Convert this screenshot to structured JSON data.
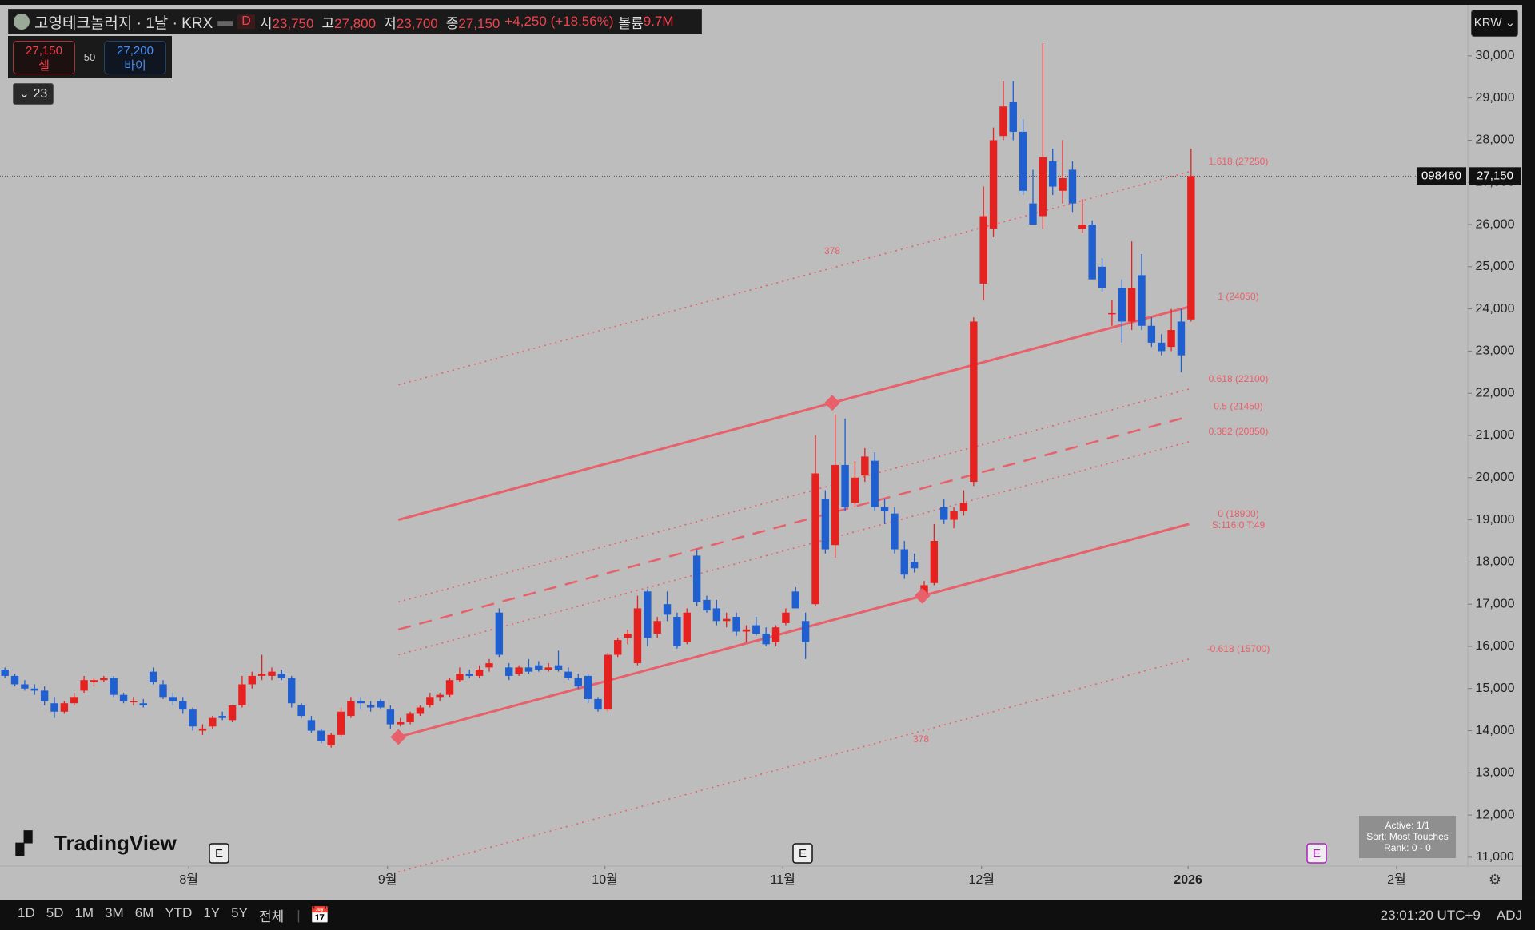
{
  "header": {
    "symbol": "고영테크놀러지 · 1날 · KRX",
    "interval": "D",
    "quote": [
      {
        "label": "시",
        "value": "23,750"
      },
      {
        "label": "고",
        "value": "27,800"
      },
      {
        "label": "저",
        "value": "23,700"
      },
      {
        "label": "종",
        "value": "27,150"
      }
    ],
    "change": "+4,250 (+18.56%)",
    "volume_label": "볼륨",
    "volume": "9.7M",
    "currency": "KRW"
  },
  "trade": {
    "sell_price": "27,150",
    "sell": "셀",
    "spread": "50",
    "buy_price": "27,200",
    "buy": "바이"
  },
  "indicators_count": "23",
  "chart_data": {
    "type": "candlestick",
    "up_color": "#e5221f",
    "down_color": "#1f5fcf",
    "grid": false,
    "ylim": [
      10790,
      31210
    ],
    "yticks": [
      {
        "value": 11000,
        "label": "11,000"
      },
      {
        "value": 12000,
        "label": "12,000"
      },
      {
        "value": 13000,
        "label": "13,000"
      },
      {
        "value": 14000,
        "label": "14,000"
      },
      {
        "value": 15000,
        "label": "15,000"
      },
      {
        "value": 16000,
        "label": "16,000"
      },
      {
        "value": 17000,
        "label": "17,000"
      },
      {
        "value": 18000,
        "label": "18,000"
      },
      {
        "value": 19000,
        "label": "19,000"
      },
      {
        "value": 20000,
        "label": "20,000"
      },
      {
        "value": 21000,
        "label": "21,000"
      },
      {
        "value": 22000,
        "label": "22,000"
      },
      {
        "value": 23000,
        "label": "23,000"
      },
      {
        "value": 24000,
        "label": "24,000"
      },
      {
        "value": 25000,
        "label": "25,000"
      },
      {
        "value": 26000,
        "label": "26,000"
      },
      {
        "value": 27000,
        "label": "27,000"
      },
      {
        "value": 28000,
        "label": "28,000"
      },
      {
        "value": 29000,
        "label": "29,000"
      },
      {
        "value": 30000,
        "label": "30,000"
      }
    ],
    "xlim": [
      -0.5,
      148
    ],
    "xticks": [
      {
        "value": 18.6,
        "label": "8월"
      },
      {
        "value": 38.7,
        "label": "9월"
      },
      {
        "value": 60.7,
        "label": "10월"
      },
      {
        "value": 78.7,
        "label": "11월"
      },
      {
        "value": 98.8,
        "label": "12월"
      },
      {
        "value": 119.7,
        "label": "2026"
      },
      {
        "value": 140.8,
        "label": "2월"
      }
    ],
    "candles": [
      [
        15450,
        15500,
        15250,
        15300
      ],
      [
        15300,
        15350,
        15050,
        15100
      ],
      [
        15100,
        15200,
        14950,
        15000
      ],
      [
        15000,
        15100,
        14850,
        14950
      ],
      [
        14950,
        15050,
        14600,
        14700
      ],
      [
        14650,
        14800,
        14300,
        14450
      ],
      [
        14450,
        14700,
        14400,
        14650
      ],
      [
        14650,
        14900,
        14600,
        14800
      ],
      [
        14950,
        15300,
        14900,
        15200
      ],
      [
        15150,
        15250,
        15050,
        15200
      ],
      [
        15200,
        15300,
        15150,
        15250
      ],
      [
        15250,
        15300,
        14800,
        14850
      ],
      [
        14850,
        14900,
        14650,
        14700
      ],
      [
        14700,
        14800,
        14600,
        14700
      ],
      [
        14650,
        14750,
        14550,
        14600
      ],
      [
        15400,
        15500,
        15100,
        15150
      ],
      [
        15100,
        15200,
        14750,
        14800
      ],
      [
        14800,
        14900,
        14600,
        14700
      ],
      [
        14700,
        14800,
        14400,
        14500
      ],
      [
        14500,
        14550,
        14000,
        14100
      ],
      [
        14000,
        14150,
        13900,
        14050
      ],
      [
        14100,
        14350,
        14050,
        14300
      ],
      [
        14350,
        14450,
        14250,
        14300
      ],
      [
        14250,
        14600,
        14200,
        14600
      ],
      [
        14600,
        15300,
        14550,
        15100
      ],
      [
        15100,
        15400,
        15000,
        15300
      ],
      [
        15300,
        15800,
        15200,
        15350
      ],
      [
        15300,
        15500,
        15200,
        15400
      ],
      [
        15350,
        15450,
        15200,
        15250
      ],
      [
        15250,
        15300,
        14550,
        14650
      ],
      [
        14600,
        14650,
        14300,
        14350
      ],
      [
        14250,
        14350,
        13950,
        14000
      ],
      [
        14000,
        14050,
        13700,
        13750
      ],
      [
        13650,
        13950,
        13600,
        13900
      ],
      [
        13900,
        14550,
        13850,
        14450
      ],
      [
        14350,
        14800,
        14300,
        14700
      ],
      [
        14700,
        14800,
        14500,
        14650
      ],
      [
        14600,
        14700,
        14450,
        14550
      ],
      [
        14700,
        14750,
        14500,
        14550
      ],
      [
        14500,
        14600,
        14050,
        14150
      ],
      [
        14150,
        14300,
        14100,
        14200
      ],
      [
        14200,
        14450,
        14150,
        14400
      ],
      [
        14400,
        14600,
        14350,
        14550
      ],
      [
        14600,
        14900,
        14550,
        14800
      ],
      [
        14800,
        14900,
        14700,
        14850
      ],
      [
        14850,
        15250,
        14800,
        15200
      ],
      [
        15200,
        15500,
        15150,
        15350
      ],
      [
        15350,
        15450,
        15250,
        15300
      ],
      [
        15300,
        15550,
        15250,
        15450
      ],
      [
        15500,
        15700,
        15400,
        15600
      ],
      [
        16800,
        16900,
        15750,
        15800
      ],
      [
        15500,
        15600,
        15200,
        15300
      ],
      [
        15350,
        15550,
        15300,
        15500
      ],
      [
        15500,
        15700,
        15350,
        15400
      ],
      [
        15550,
        15650,
        15400,
        15450
      ],
      [
        15450,
        15600,
        15400,
        15500
      ],
      [
        15550,
        15900,
        15400,
        15450
      ],
      [
        15400,
        15500,
        15200,
        15250
      ],
      [
        15250,
        15350,
        15000,
        15050
      ],
      [
        15300,
        15350,
        14650,
        14750
      ],
      [
        14750,
        14800,
        14450,
        14500
      ],
      [
        14500,
        15850,
        14450,
        15800
      ],
      [
        15800,
        16200,
        15750,
        16150
      ],
      [
        16200,
        16400,
        16050,
        16300
      ],
      [
        15600,
        17200,
        15550,
        16900
      ],
      [
        17300,
        17350,
        16000,
        16200
      ],
      [
        16300,
        16700,
        16200,
        16600
      ],
      [
        17000,
        17300,
        16600,
        16750
      ],
      [
        16700,
        16800,
        15950,
        16000
      ],
      [
        16100,
        16900,
        16050,
        16800
      ],
      [
        18150,
        18300,
        16950,
        17050
      ],
      [
        17100,
        17200,
        16800,
        16850
      ],
      [
        16900,
        17100,
        16500,
        16600
      ],
      [
        16600,
        16800,
        16450,
        16650
      ],
      [
        16700,
        16800,
        16250,
        16350
      ],
      [
        16350,
        16500,
        16100,
        16400
      ],
      [
        16500,
        16700,
        16250,
        16300
      ],
      [
        16300,
        16450,
        16000,
        16050
      ],
      [
        16100,
        16500,
        16000,
        16450
      ],
      [
        16550,
        16900,
        16500,
        16800
      ],
      [
        17300,
        17400,
        16900,
        16900
      ],
      [
        16600,
        16800,
        15700,
        16100
      ],
      [
        17000,
        21000,
        16950,
        20100
      ],
      [
        19500,
        19700,
        18200,
        18300
      ],
      [
        18400,
        21500,
        18100,
        20300
      ],
      [
        20300,
        21400,
        19200,
        19300
      ],
      [
        19400,
        20400,
        19300,
        20000
      ],
      [
        20050,
        20700,
        19900,
        20500
      ],
      [
        20400,
        20600,
        19200,
        19300
      ],
      [
        19300,
        19500,
        18900,
        19200
      ],
      [
        19150,
        19300,
        18200,
        18300
      ],
      [
        18300,
        18500,
        17600,
        17700
      ],
      [
        18000,
        18200,
        17750,
        17850
      ],
      [
        17150,
        17550,
        17050,
        17450
      ],
      [
        17500,
        18900,
        17450,
        18500
      ],
      [
        19300,
        19500,
        18900,
        19000
      ],
      [
        19000,
        19300,
        18800,
        19200
      ],
      [
        19200,
        19700,
        19100,
        19400
      ],
      [
        19900,
        23800,
        19800,
        23700
      ],
      [
        24600,
        26900,
        24200,
        26200
      ],
      [
        25900,
        28300,
        25700,
        28000
      ],
      [
        28100,
        29400,
        28000,
        28800
      ],
      [
        28900,
        29400,
        28000,
        28200
      ],
      [
        28200,
        28500,
        26700,
        26800
      ],
      [
        26500,
        27300,
        26000,
        26000
      ],
      [
        26200,
        30300,
        25900,
        27600
      ],
      [
        27500,
        27800,
        26700,
        26900
      ],
      [
        26800,
        28000,
        26500,
        27100
      ],
      [
        27300,
        27500,
        26300,
        26500
      ],
      [
        25900,
        26600,
        25800,
        26000
      ],
      [
        26000,
        26100,
        24700,
        24700
      ],
      [
        25000,
        25200,
        24400,
        24500
      ],
      [
        23900,
        24200,
        23600,
        23900
      ],
      [
        24500,
        24700,
        23200,
        23700
      ],
      [
        23700,
        25600,
        23500,
        24500
      ],
      [
        24800,
        25300,
        23500,
        23600
      ],
      [
        23600,
        23800,
        23100,
        23200
      ],
      [
        23200,
        23400,
        22900,
        23000
      ],
      [
        23100,
        24000,
        23000,
        23500
      ],
      [
        23700,
        24000,
        22500,
        22900
      ],
      [
        23750,
        27800,
        23700,
        27150
      ]
    ],
    "channel": {
      "color": "#e8606a",
      "levels": [
        {
          "value": 27250,
          "label": "1.618 (27250)",
          "style": "dotted"
        },
        {
          "value": 24050,
          "label": "1 (24050)",
          "style": "solid"
        },
        {
          "value": 22100,
          "label": "0.618 (22100)",
          "style": "dotted"
        },
        {
          "value": 21450,
          "label": "0.5 (21450)",
          "style": "dashed"
        },
        {
          "value": 20850,
          "label": "0.382 (20850)",
          "style": "dotted"
        },
        {
          "value": 18900,
          "label": "0 (18900)",
          "style": "solid"
        },
        {
          "value": 15700,
          "label": "-0.618 (15700)",
          "style": "dotted"
        }
      ],
      "stats": "S:116.0 T:49",
      "annotations": [
        "378",
        "378"
      ]
    },
    "last_price": {
      "value": 27150,
      "label": "27,150"
    },
    "symbol_code": "098460"
  },
  "logo": "TradingView",
  "events": [
    "E",
    "E",
    "E"
  ],
  "info_box": [
    "Active: 1/1",
    "Sort: Most Touches",
    "Rank: 0 - 0"
  ],
  "toolbar": {
    "ranges": [
      "1D",
      "5D",
      "1M",
      "3M",
      "6M",
      "YTD",
      "1Y",
      "5Y",
      "전체"
    ],
    "time": "23:01:20 UTC+9",
    "adj": "ADJ"
  }
}
